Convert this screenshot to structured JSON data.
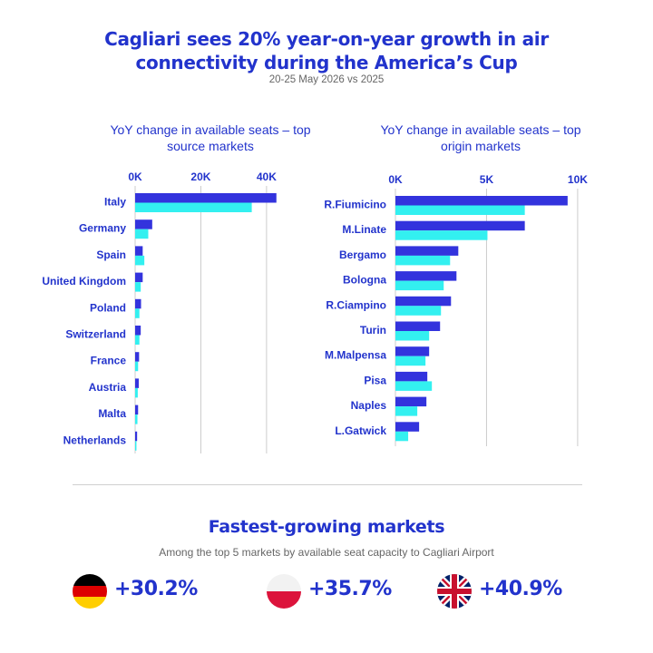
{
  "header": {
    "title_line1": "Cagliari sees 20% year-on-year growth in air",
    "title_line2": "connectivity during the America’s Cup",
    "subtitle": "20-25 May 2026 vs 2025"
  },
  "colors": {
    "bar_2026": "#3333dd",
    "bar_2025": "#33f0f0",
    "text": "#2233cc",
    "grid": "#cccccc"
  },
  "chart_data": [
    {
      "type": "bar",
      "orientation": "horizontal",
      "title_line1": "YoY change in available seats – top",
      "title_line2": "source markets",
      "xlim": [
        0,
        45000
      ],
      "ticks": [
        0,
        20000,
        40000
      ],
      "tick_labels": [
        "0K",
        "20K",
        "40K"
      ],
      "grid": true,
      "categories": [
        "Italy",
        "Germany",
        "Spain",
        "United Kingdom",
        "Poland",
        "Switzerland",
        "France",
        "Austria",
        "Malta",
        "Netherlands"
      ],
      "series": [
        {
          "values": [
            43000,
            5200,
            2300,
            2300,
            1800,
            1700,
            1200,
            1100,
            900,
            600
          ]
        },
        {
          "values": [
            35500,
            4000,
            2800,
            1700,
            1300,
            1300,
            900,
            800,
            700,
            400
          ]
        }
      ]
    },
    {
      "type": "bar",
      "orientation": "horizontal",
      "title_line1": "YoY change in available seats – top",
      "title_line2": "origin markets",
      "xlim": [
        0,
        11000
      ],
      "ticks": [
        0,
        5000,
        10000
      ],
      "tick_labels": [
        "0K",
        "5K",
        "10K"
      ],
      "grid": true,
      "categories": [
        "R.Fiumicino",
        "M.Linate",
        "Bergamo",
        "Bologna",
        "R.Ciampino",
        "Turin",
        "M.Malpensa",
        "Pisa",
        "Naples",
        "L.Gatwick"
      ],
      "series": [
        {
          "values": [
            9450,
            7100,
            3450,
            3350,
            3050,
            2450,
            1850,
            1750,
            1700,
            1300
          ]
        },
        {
          "values": [
            7100,
            5050,
            3000,
            2650,
            2500,
            1850,
            1650,
            2000,
            1200,
            700
          ]
        }
      ]
    }
  ],
  "fastest": {
    "title": "Fastest-growing markets",
    "subtitle": "Among the top 5 markets by available seat capacity to Cagliari Airport",
    "items": [
      {
        "flag": "germany-flag-icon",
        "value": "+30.2%"
      },
      {
        "flag": "poland-flag-icon",
        "value": "+35.7%"
      },
      {
        "flag": "uk-flag-icon",
        "value": "+40.9%"
      }
    ]
  }
}
